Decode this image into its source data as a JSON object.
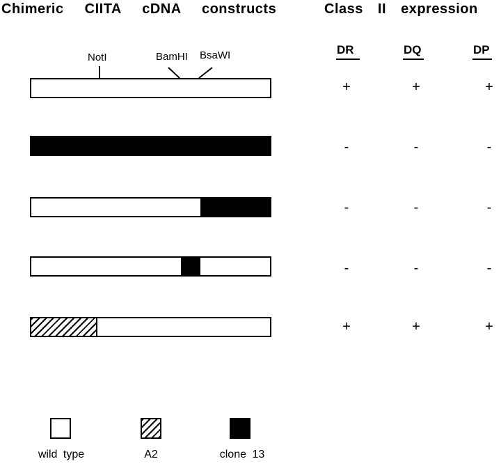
{
  "title_left": "Chimeric CIITA cDNA constructs",
  "title_right": "Class II expression",
  "restriction_sites": [
    {
      "label": "NotI"
    },
    {
      "label": "BamHI"
    },
    {
      "label": "BsaWI"
    }
  ],
  "expression_columns": [
    {
      "label": "DR"
    },
    {
      "label": "DQ"
    },
    {
      "label": "DP"
    }
  ],
  "constructs": [
    {
      "segments": [
        {
          "fill": "wild",
          "start_pct": 0,
          "end_pct": 100
        }
      ],
      "expression": [
        "+",
        "+",
        "+"
      ]
    },
    {
      "segments": [
        {
          "fill": "clone13",
          "start_pct": 0,
          "end_pct": 100
        }
      ],
      "expression": [
        "-",
        "-",
        "-"
      ]
    },
    {
      "segments": [
        {
          "fill": "wild",
          "start_pct": 0,
          "end_pct": 70.8
        },
        {
          "fill": "clone13",
          "start_pct": 70.8,
          "end_pct": 100
        }
      ],
      "expression": [
        "-",
        "-",
        "-"
      ]
    },
    {
      "segments": [
        {
          "fill": "wild",
          "start_pct": 0,
          "end_pct": 62.7
        },
        {
          "fill": "clone13",
          "start_pct": 62.7,
          "end_pct": 70.8
        },
        {
          "fill": "wild",
          "start_pct": 70.8,
          "end_pct": 100
        }
      ],
      "expression": [
        "-",
        "-",
        "-"
      ]
    },
    {
      "segments": [
        {
          "fill": "a2",
          "start_pct": 0,
          "end_pct": 27.7
        },
        {
          "fill": "wild",
          "start_pct": 27.7,
          "end_pct": 100
        }
      ],
      "expression": [
        "+",
        "+",
        "+"
      ]
    }
  ],
  "legend": [
    {
      "fill": "wild",
      "label": "wild type"
    },
    {
      "fill": "a2",
      "label": "A2"
    },
    {
      "fill": "clone13",
      "label": "clone 13"
    }
  ],
  "colors": {
    "ink": "#000000",
    "paper": "#ffffff"
  }
}
